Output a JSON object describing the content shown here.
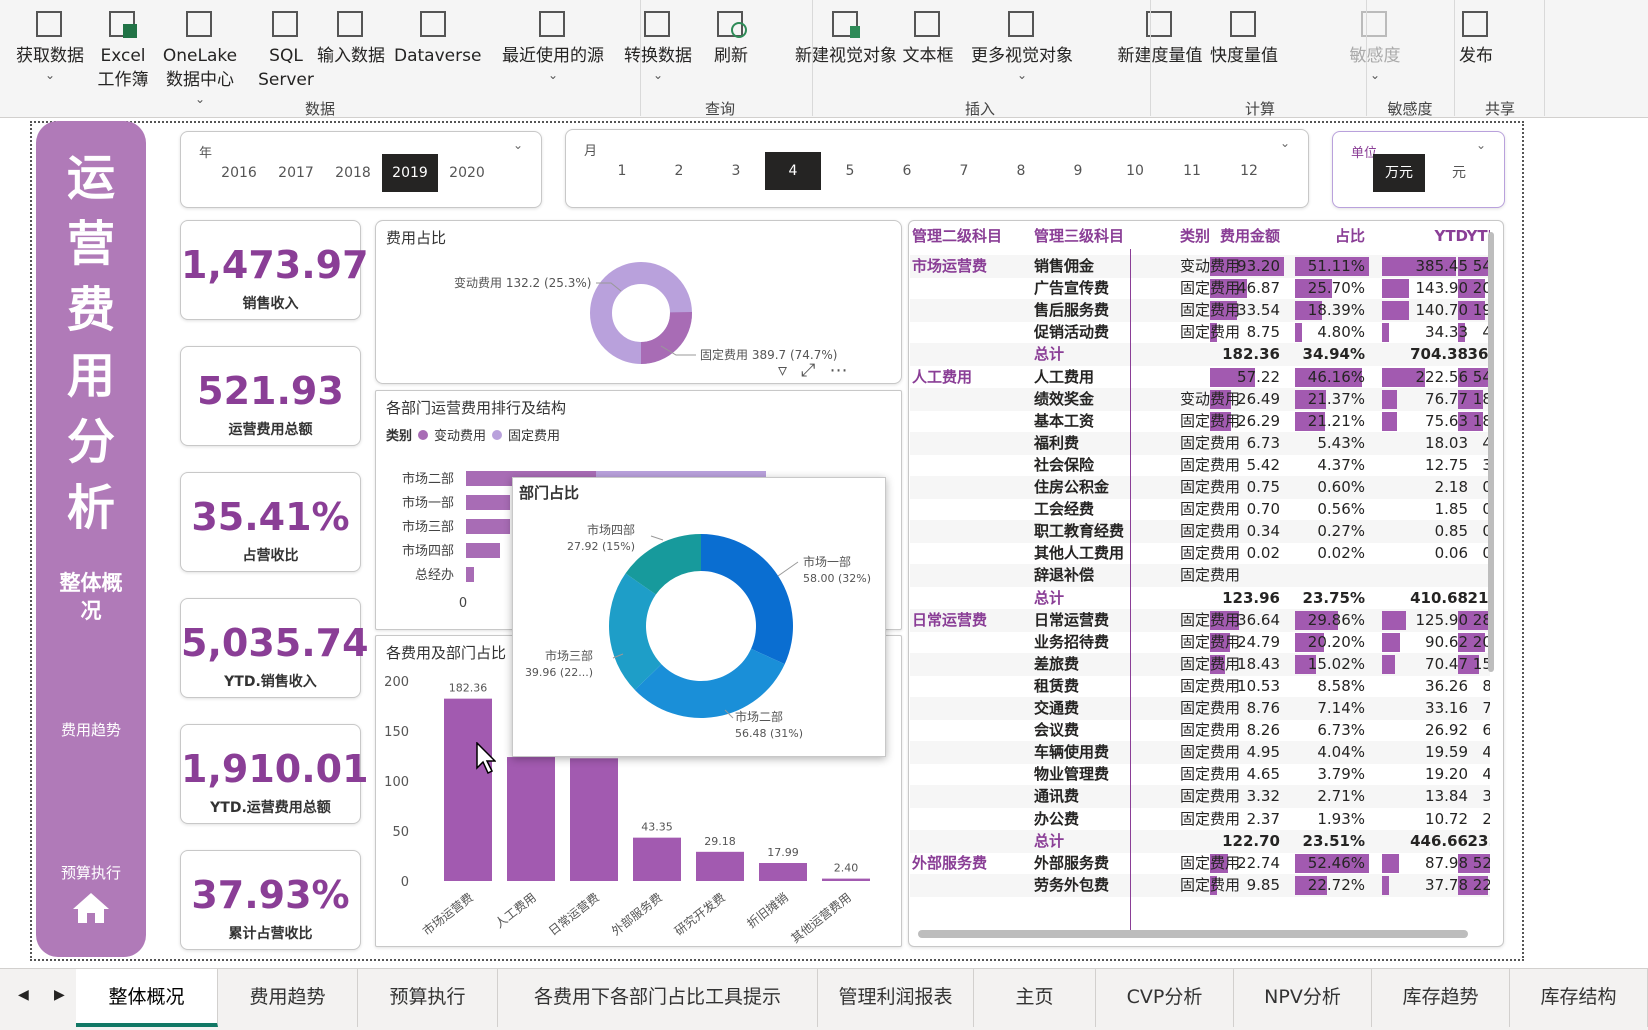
{
  "ribbon": {
    "buttons": [
      {
        "l1": "获取数据",
        "l2": "",
        "chev": true,
        "icon": "table-icon"
      },
      {
        "l1": "Excel",
        "l2": "工作簿",
        "chev": false,
        "icon": "excel-icon"
      },
      {
        "l1": "OneLake",
        "l2": "数据中心",
        "chev": true,
        "icon": "onelake-icon"
      },
      {
        "l1": "SQL",
        "l2": "Server",
        "chev": false,
        "icon": "database-icon"
      },
      {
        "l1": "输入数据",
        "l2": "",
        "chev": false,
        "icon": "grid-icon"
      },
      {
        "l1": "Dataverse",
        "l2": "",
        "chev": false,
        "icon": "dataverse-icon"
      },
      {
        "l1": "最近使用的源",
        "l2": "",
        "chev": true,
        "icon": "recent-sources-icon"
      },
      {
        "l1": "转换数据",
        "l2": "",
        "chev": true,
        "icon": "transform-icon"
      },
      {
        "l1": "刷新",
        "l2": "",
        "chev": false,
        "icon": "refresh-icon"
      },
      {
        "l1": "新建视觉对象",
        "l2": "",
        "chev": false,
        "icon": "new-visual-icon"
      },
      {
        "l1": "文本框",
        "l2": "",
        "chev": false,
        "icon": "textbox-icon"
      },
      {
        "l1": "更多视觉对象",
        "l2": "",
        "chev": true,
        "icon": "more-visuals-icon"
      },
      {
        "l1": "新建度量值",
        "l2": "",
        "chev": false,
        "icon": "measure-icon"
      },
      {
        "l1": "快度量值",
        "l2": "",
        "chev": false,
        "icon": "quick-measure-icon"
      },
      {
        "l1": "敏感度",
        "l2": "",
        "chev": true,
        "icon": "sensitivity-icon"
      },
      {
        "l1": "发布",
        "l2": "",
        "chev": false,
        "icon": "publish-icon"
      }
    ],
    "groups": [
      "数据",
      "查询",
      "插入",
      "计算",
      "敏感度",
      "共享"
    ]
  },
  "sidebar": {
    "title_chars": [
      "运",
      "营",
      "费",
      "用",
      "分",
      "析"
    ],
    "current": "整体概况",
    "nav1": "费用趋势",
    "nav2": "预算执行"
  },
  "slicers": {
    "year": {
      "label": "年",
      "options": [
        "2016",
        "2017",
        "2018",
        "2019",
        "2020"
      ],
      "selected": "2019"
    },
    "month": {
      "label": "月",
      "options": [
        "1",
        "2",
        "3",
        "4",
        "5",
        "6",
        "7",
        "8",
        "9",
        "10",
        "11",
        "12"
      ],
      "selected": "4"
    },
    "unit": {
      "label": "单位",
      "options": [
        "万元",
        "元"
      ],
      "selected": "万元"
    }
  },
  "kpis": [
    {
      "value": "1,473.97",
      "label": "销售收入"
    },
    {
      "value": "521.93",
      "label": "运营费用总额"
    },
    {
      "value": "35.41%",
      "label": "占营收比"
    },
    {
      "value": "5,035.74",
      "label": "YTD.销售收入"
    },
    {
      "value": "1,910.01",
      "label": "YTD.运营费用总额"
    },
    {
      "value": "37.93%",
      "label": "累计占营收比"
    }
  ],
  "fee_ratio": {
    "title": "费用占比",
    "label_var": "变动费用 132.2 (25.3%)",
    "label_fix": "固定费用 389.7 (74.7%)",
    "var_pct": 25.3,
    "colors": {
      "var": "#a86cb5",
      "fix": "#b9a1dc"
    }
  },
  "dept_rank": {
    "title": "各部门运营费用排行及结构",
    "legend_title": "类别",
    "legend": [
      "变动费用",
      "固定费用"
    ],
    "depts": [
      "市场二部",
      "市场一部",
      "市场三部",
      "市场四部",
      "总经办"
    ],
    "visible_values": [
      "52",
      "64",
      "116.24",
      "27",
      "29",
      "12"
    ],
    "axis_zero": "0"
  },
  "dept_tooltip": {
    "title": "部门占比",
    "labels": [
      {
        "name": "市场一部",
        "val": "58.00 (32%)"
      },
      {
        "name": "市场二部",
        "val": "56.48 (31%)"
      },
      {
        "name": "市场三部",
        "val": "39.96 (22...)"
      },
      {
        "name": "市场四部",
        "val": "27.92 (15%)"
      }
    ],
    "slices": [
      58.0,
      56.48,
      39.96,
      27.92
    ],
    "colors": [
      "#0a6ed1",
      "#1a8fd8",
      "#1e9ec8",
      "#179a9c"
    ]
  },
  "chart_data": {
    "type": "bar",
    "title": "各费用及部门占比",
    "categories": [
      "市场运营费",
      "人工费用",
      "日常运营费",
      "外部服务费",
      "研究开发费",
      "折旧摊销",
      "其他运营费用"
    ],
    "values": [
      182.36,
      123.96,
      122.7,
      43.35,
      29.18,
      17.99,
      2.4
    ],
    "value_labels": [
      "182.36",
      "",
      "",
      "43.35",
      "29.18",
      "17.99",
      "2.40"
    ],
    "ylim": [
      0,
      200
    ],
    "yticks": [
      "0",
      "50",
      "100",
      "150",
      "200"
    ],
    "color": "#a25ab0"
  },
  "table": {
    "headers": [
      "管理二级科目",
      "管理三级科目",
      "类别",
      "费用金额",
      "占比",
      "YTD",
      "YTD占比"
    ],
    "rows": [
      {
        "l2": "市场运营费",
        "l3": "销售佣金",
        "c": "变动费用",
        "amt": "93.20",
        "pct": "51.11%",
        "ytd": "385.45",
        "ytdp": "54.72%",
        "b": [
          1,
          1,
          1,
          1
        ]
      },
      {
        "l2": "",
        "l3": "广告宣传费",
        "c": "固定费用",
        "amt": "46.87",
        "pct": "25.70%",
        "ytd": "143.90",
        "ytdp": "20.43%",
        "b": [
          0.5,
          0.5,
          0.37,
          0.37
        ]
      },
      {
        "l2": "",
        "l3": "售后服务费",
        "c": "固定费用",
        "amt": "33.54",
        "pct": "18.39%",
        "ytd": "140.70",
        "ytdp": "19.97%",
        "b": [
          0.36,
          0.36,
          0.36,
          0.36
        ]
      },
      {
        "l2": "",
        "l3": "促销活动费",
        "c": "固定费用",
        "amt": "8.75",
        "pct": "4.80%",
        "ytd": "34.33",
        "ytdp": "4.87%",
        "b": [
          0.09,
          0.09,
          0.09,
          0.09
        ]
      },
      {
        "l2": "",
        "l3": "总计",
        "c": "",
        "amt": "182.36",
        "pct": "34.94%",
        "ytd": "704.38",
        "ytdp": "36.88%",
        "bold": true
      },
      {
        "l2": "人工费用",
        "l3": "人工费用",
        "c": "",
        "amt": "57.22",
        "pct": "46.16%",
        "ytd": "222.56",
        "ytdp": "54.19%",
        "b": [
          0.61,
          0.9,
          0.58,
          0.99
        ]
      },
      {
        "l2": "",
        "l3": "绩效奖金",
        "c": "变动费用",
        "amt": "26.49",
        "pct": "21.37%",
        "ytd": "76.77",
        "ytdp": "18.69%",
        "b": [
          0.28,
          0.42,
          0.2,
          0.34
        ]
      },
      {
        "l2": "",
        "l3": "基本工资",
        "c": "固定费用",
        "amt": "26.29",
        "pct": "21.21%",
        "ytd": "75.63",
        "ytdp": "18.42%",
        "b": [
          0.28,
          0.41,
          0.2,
          0.34
        ]
      },
      {
        "l2": "",
        "l3": "福利费",
        "c": "固定费用",
        "amt": "6.73",
        "pct": "5.43%",
        "ytd": "18.03",
        "ytdp": "4.39%"
      },
      {
        "l2": "",
        "l3": "社会保险",
        "c": "固定费用",
        "amt": "5.42",
        "pct": "4.37%",
        "ytd": "12.75",
        "ytdp": "3.10%"
      },
      {
        "l2": "",
        "l3": "住房公积金",
        "c": "固定费用",
        "amt": "0.75",
        "pct": "0.60%",
        "ytd": "2.18",
        "ytdp": "0.53%"
      },
      {
        "l2": "",
        "l3": "工会经费",
        "c": "固定费用",
        "amt": "0.70",
        "pct": "0.56%",
        "ytd": "1.85",
        "ytdp": "0.45%"
      },
      {
        "l2": "",
        "l3": "职工教育经费",
        "c": "固定费用",
        "amt": "0.34",
        "pct": "0.27%",
        "ytd": "0.85",
        "ytdp": "0.21%"
      },
      {
        "l2": "",
        "l3": "其他人工费用",
        "c": "固定费用",
        "amt": "0.02",
        "pct": "0.02%",
        "ytd": "0.06",
        "ytdp": "0.01%"
      },
      {
        "l2": "",
        "l3": "辞退补偿",
        "c": "固定费用",
        "amt": "",
        "pct": "",
        "ytd": "",
        "ytdp": ""
      },
      {
        "l2": "",
        "l3": "总计",
        "c": "",
        "amt": "123.96",
        "pct": "23.75%",
        "ytd": "410.68",
        "ytdp": "21.50%",
        "bold": true
      },
      {
        "l2": "日常运营费",
        "l3": "日常运营费",
        "c": "固定费用",
        "amt": "36.64",
        "pct": "29.86%",
        "ytd": "125.90",
        "ytdp": "28.19%",
        "b": [
          0.39,
          0.58,
          0.33,
          0.51
        ]
      },
      {
        "l2": "",
        "l3": "业务招待费",
        "c": "固定费用",
        "amt": "24.79",
        "pct": "20.20%",
        "ytd": "90.62",
        "ytdp": "20.29%",
        "b": [
          0.27,
          0.39,
          0.24,
          0.37
        ]
      },
      {
        "l2": "",
        "l3": "差旅费",
        "c": "固定费用",
        "amt": "18.43",
        "pct": "15.02%",
        "ytd": "70.47",
        "ytdp": "15.78%",
        "b": [
          0.2,
          0.29,
          0.18,
          0.29
        ]
      },
      {
        "l2": "",
        "l3": "租赁费",
        "c": "固定费用",
        "amt": "10.53",
        "pct": "8.58%",
        "ytd": "36.26",
        "ytdp": "8.12%"
      },
      {
        "l2": "",
        "l3": "交通费",
        "c": "固定费用",
        "amt": "8.76",
        "pct": "7.14%",
        "ytd": "33.16",
        "ytdp": "7.42%"
      },
      {
        "l2": "",
        "l3": "会议费",
        "c": "固定费用",
        "amt": "8.26",
        "pct": "6.73%",
        "ytd": "26.92",
        "ytdp": "6.03%"
      },
      {
        "l2": "",
        "l3": "车辆使用费",
        "c": "固定费用",
        "amt": "4.95",
        "pct": "4.04%",
        "ytd": "19.59",
        "ytdp": "4.39%"
      },
      {
        "l2": "",
        "l3": "物业管理费",
        "c": "固定费用",
        "amt": "4.65",
        "pct": "3.79%",
        "ytd": "19.20",
        "ytdp": "4.30%"
      },
      {
        "l2": "",
        "l3": "通讯费",
        "c": "固定费用",
        "amt": "3.32",
        "pct": "2.71%",
        "ytd": "13.84",
        "ytdp": "3.10%"
      },
      {
        "l2": "",
        "l3": "办公费",
        "c": "固定费用",
        "amt": "2.37",
        "pct": "1.93%",
        "ytd": "10.72",
        "ytdp": "2.40%"
      },
      {
        "l2": "",
        "l3": "总计",
        "c": "",
        "amt": "122.70",
        "pct": "23.51%",
        "ytd": "446.66",
        "ytdp": "23.39%",
        "bold": true
      },
      {
        "l2": "外部服务费",
        "l3": "外部服务费",
        "c": "固定费用",
        "amt": "22.74",
        "pct": "52.46%",
        "ytd": "87.98",
        "ytdp": "52.39%",
        "b": [
          0.24,
          1,
          0.23,
          0.96
        ]
      },
      {
        "l2": "",
        "l3": "劳务外包费",
        "c": "固定费用",
        "amt": "9.85",
        "pct": "22.72%",
        "ytd": "37.78",
        "ytdp": "22.50%",
        "b": [
          0.1,
          0.43,
          0.1,
          0.41
        ]
      }
    ]
  },
  "tabs": [
    "整体概况",
    "费用趋势",
    "预算执行",
    "各费用下各部门占比工具提示",
    "管理利润报表",
    "主页",
    "CVP分析",
    "NPV分析",
    "库存趋势",
    "库存结构"
  ],
  "active_tab": "整体概况",
  "accent": "#8a3e96"
}
